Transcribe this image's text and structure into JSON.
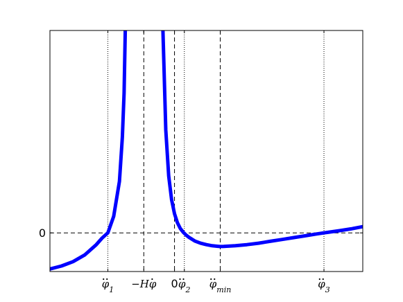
{
  "chart_data": {
    "type": "line",
    "title": "",
    "xlabel": "",
    "ylabel": "",
    "grid": false,
    "xlim": [
      -4.2,
      1.2
    ],
    "ylim": [
      -1.05,
      5.5
    ],
    "yticks": [
      {
        "value": 0,
        "label": "0"
      }
    ],
    "xticks": [
      {
        "value": -3.2,
        "label": "φ̈₁",
        "base": "φ",
        "sub": "1",
        "line": "dotted"
      },
      {
        "value": -2.58,
        "label": "−Hφ̇",
        "base": "−Hφ",
        "sub": "",
        "line": "dashed"
      },
      {
        "value": -2.05,
        "label": "0",
        "base": "0",
        "sub": "",
        "line": "dashed"
      },
      {
        "value": -1.88,
        "label": "φ̈₂",
        "base": "φ",
        "sub": "2",
        "line": "dotted"
      },
      {
        "value": -1.26,
        "label": "φ̈min",
        "base": "φ",
        "sub": "min",
        "line": "dashed"
      },
      {
        "value": 0.53,
        "label": "φ̈₃",
        "base": "φ",
        "sub": "3",
        "line": "dotted"
      }
    ],
    "hlines": [
      {
        "value": 0,
        "line": "dashed"
      }
    ],
    "series": [
      {
        "color": "#0000ff",
        "x": [
          -4.2,
          -4.0,
          -3.8,
          -3.6,
          -3.4,
          -3.3,
          -3.2,
          -3.1,
          -3.0,
          -2.95,
          -2.92,
          -2.9,
          -2.25,
          -2.2,
          -2.15,
          -2.1,
          -2.05,
          -2.0,
          -1.95,
          -1.9,
          -1.85,
          -1.8,
          -1.7,
          -1.6,
          -1.5,
          -1.4,
          -1.3,
          -1.26,
          -1.2,
          -1.0,
          -0.8,
          -0.6,
          -0.4,
          -0.2,
          0.0,
          0.2,
          0.4,
          0.53,
          0.6,
          0.8,
          1.0,
          1.2
        ],
        "y": [
          -0.98,
          -0.9,
          -0.78,
          -0.6,
          -0.32,
          -0.14,
          0.0,
          0.45,
          1.4,
          2.6,
          3.8,
          5.5,
          5.5,
          2.8,
          1.55,
          0.9,
          0.52,
          0.28,
          0.12,
          0.02,
          -0.06,
          -0.12,
          -0.22,
          -0.28,
          -0.32,
          -0.35,
          -0.365,
          -0.37,
          -0.368,
          -0.35,
          -0.32,
          -0.28,
          -0.23,
          -0.18,
          -0.13,
          -0.08,
          -0.03,
          0.0,
          0.015,
          0.06,
          0.11,
          0.17
        ]
      }
    ]
  }
}
